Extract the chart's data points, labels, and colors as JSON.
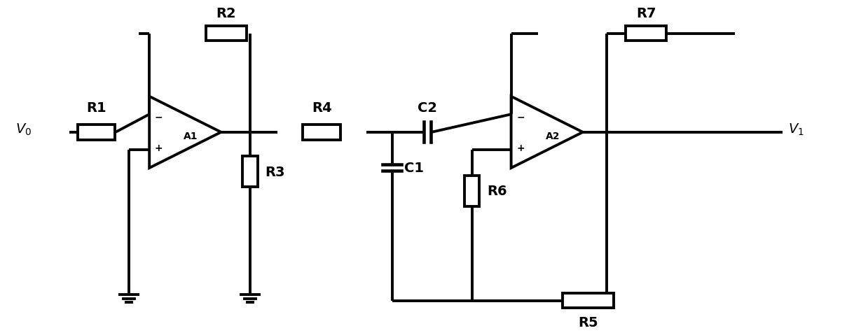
{
  "background_color": "#ffffff",
  "line_color": "#000000",
  "lw": 2.8,
  "figsize": [
    12.39,
    4.77
  ],
  "dpi": 100,
  "xlim": [
    0,
    12.39
  ],
  "ylim": [
    0,
    4.77
  ]
}
